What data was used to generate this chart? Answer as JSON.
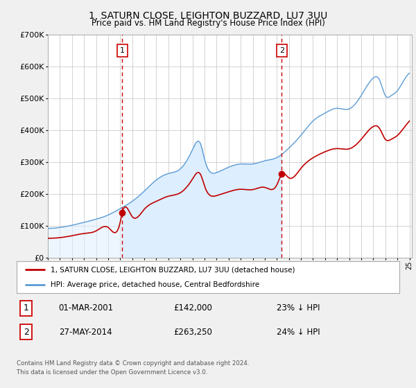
{
  "title": "1, SATURN CLOSE, LEIGHTON BUZZARD, LU7 3UU",
  "subtitle": "Price paid vs. HM Land Registry's House Price Index (HPI)",
  "legend_line1": "1, SATURN CLOSE, LEIGHTON BUZZARD, LU7 3UU (detached house)",
  "legend_line2": "HPI: Average price, detached house, Central Bedfordshire",
  "sale1_date": "01-MAR-2001",
  "sale1_price": 142000,
  "sale1_pct": "23% ↓ HPI",
  "sale2_date": "27-MAY-2014",
  "sale2_price": 263250,
  "sale2_pct": "24% ↓ HPI",
  "footnote1": "Contains HM Land Registry data © Crown copyright and database right 2024.",
  "footnote2": "This data is licensed under the Open Government Licence v3.0.",
  "sale1_x": 2001.17,
  "sale2_x": 2014.41,
  "sale1_y": 142000,
  "sale2_y": 263250,
  "ylim": [
    0,
    700000
  ],
  "xlim": [
    1995.3,
    2025.2
  ],
  "hpi_color": "#5b9bd5",
  "price_color": "#c00000",
  "vline_color": "#cc0000",
  "fill_color": "#ddeeff",
  "background_color": "#f0f0f0",
  "plot_bg_color": "#ffffff",
  "grid_color": "#cccccc"
}
